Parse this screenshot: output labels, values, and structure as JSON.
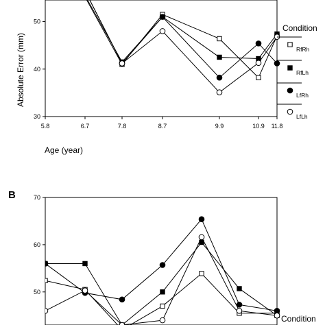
{
  "chart_data": [
    {
      "panel": "",
      "type": "line",
      "title": "",
      "xlabel": "Age (year)",
      "ylabel": "Absolute Error (mm)",
      "x_ticks": [
        "5.8",
        "6.7",
        "7.8",
        "8.7",
        "9.9",
        "10.9",
        "11.8"
      ],
      "ylim": [
        30,
        56
      ],
      "y_ticks": [
        30,
        40,
        50
      ],
      "legend": {
        "title": "Condition",
        "placement": "right"
      },
      "series": [
        {
          "name": "RfRh",
          "marker": "open-square",
          "x": [
            5.8,
            6.7,
            7.8,
            8.7,
            9.9,
            10.9,
            11.8
          ],
          "y": [
            null,
            55.2,
            41.0,
            51.5,
            46.4,
            38.2,
            47.0
          ]
        },
        {
          "name": "RfLh",
          "marker": "filled-square",
          "x": [
            5.8,
            6.7,
            7.8,
            8.7,
            9.9,
            10.9,
            11.8
          ],
          "y": [
            null,
            55.5,
            41.5,
            51.0,
            42.5,
            42.2,
            47.4
          ]
        },
        {
          "name": "LfRh",
          "marker": "filled-circle",
          "x": [
            5.8,
            6.7,
            7.8,
            8.7,
            9.9,
            10.9,
            11.8
          ],
          "y": [
            null,
            56.5,
            41.2,
            51.0,
            38.2,
            45.4,
            41.2
          ]
        },
        {
          "name": "LfLh",
          "marker": "open-circle",
          "x": [
            5.8,
            6.7,
            7.8,
            8.7,
            9.9,
            10.9,
            11.8
          ],
          "y": [
            null,
            56.5,
            41.2,
            48.0,
            35.1,
            41.3,
            46.8
          ]
        }
      ]
    },
    {
      "panel": "B",
      "type": "line",
      "title": "",
      "xlabel": "",
      "ylabel": "",
      "x_ticks": [],
      "ylim": [
        43,
        70
      ],
      "y_ticks": [
        50,
        60,
        70
      ],
      "legend": {
        "title": "Condition",
        "placement": "right"
      },
      "series": [
        {
          "name": "RfRh",
          "marker": "open-square",
          "x": [
            5.8,
            6.7,
            7.8,
            8.7,
            9.9,
            10.9,
            11.8
          ],
          "y": [
            52.4,
            50.5,
            42.0,
            47.0,
            53.9,
            45.5,
            45.5
          ]
        },
        {
          "name": "RfLh",
          "marker": "filled-square",
          "x": [
            5.8,
            6.7,
            7.8,
            8.7,
            9.9,
            10.9,
            11.8
          ],
          "y": [
            56.0,
            56.0,
            43.0,
            50.0,
            60.5,
            50.7,
            45.0
          ]
        },
        {
          "name": "LfRh",
          "marker": "filled-circle",
          "x": [
            5.8,
            6.7,
            7.8,
            8.7,
            9.9,
            10.9,
            11.8
          ],
          "y": [
            56.0,
            49.8,
            48.4,
            55.7,
            65.4,
            47.3,
            46.0
          ]
        },
        {
          "name": "LfLh",
          "marker": "open-circle",
          "x": [
            5.8,
            6.7,
            7.8,
            8.7,
            9.9,
            10.9,
            11.8
          ],
          "y": [
            46.0,
            50.3,
            43.0,
            44.0,
            61.6,
            46.0,
            45.0
          ]
        }
      ]
    }
  ]
}
